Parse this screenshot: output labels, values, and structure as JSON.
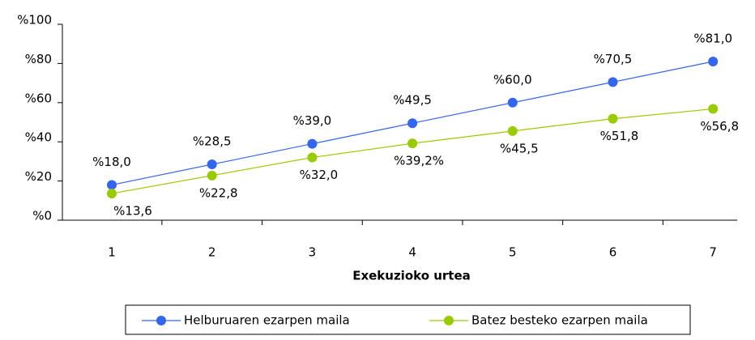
{
  "chart_data": {
    "type": "line",
    "x_label": "Exekuzioko urtea",
    "categories": [
      "1",
      "2",
      "3",
      "4",
      "5",
      "6",
      "7"
    ],
    "series": [
      {
        "name": "Helburuaren ezarpen maila",
        "color": "#3366ee",
        "values": [
          18.0,
          28.5,
          39.0,
          49.5,
          60.0,
          70.5,
          81.0
        ],
        "value_labels": [
          "%18,0",
          "%28,5",
          "%39,0",
          "%49,5",
          "%60,0",
          "%70,5",
          "%81,0"
        ]
      },
      {
        "name": "Batez besteko ezarpen maila",
        "color": "#99cc00",
        "values": [
          13.6,
          22.8,
          32.0,
          39.2,
          45.5,
          51.8,
          56.8
        ],
        "value_labels": [
          "%13,6",
          "%22,8",
          "%32,0",
          "%39,2%",
          "%45,5",
          "%51,8",
          "%56,8"
        ]
      }
    ],
    "ylim": [
      0,
      100
    ],
    "yticks": [
      {
        "value": 0,
        "label": "%0"
      },
      {
        "value": 20,
        "label": "%20"
      },
      {
        "value": 40,
        "label": "%40"
      },
      {
        "value": 60,
        "label": "%60"
      },
      {
        "value": 80,
        "label": "%80"
      },
      {
        "value": 100,
        "label": "%100"
      }
    ],
    "legend": "bottom"
  }
}
